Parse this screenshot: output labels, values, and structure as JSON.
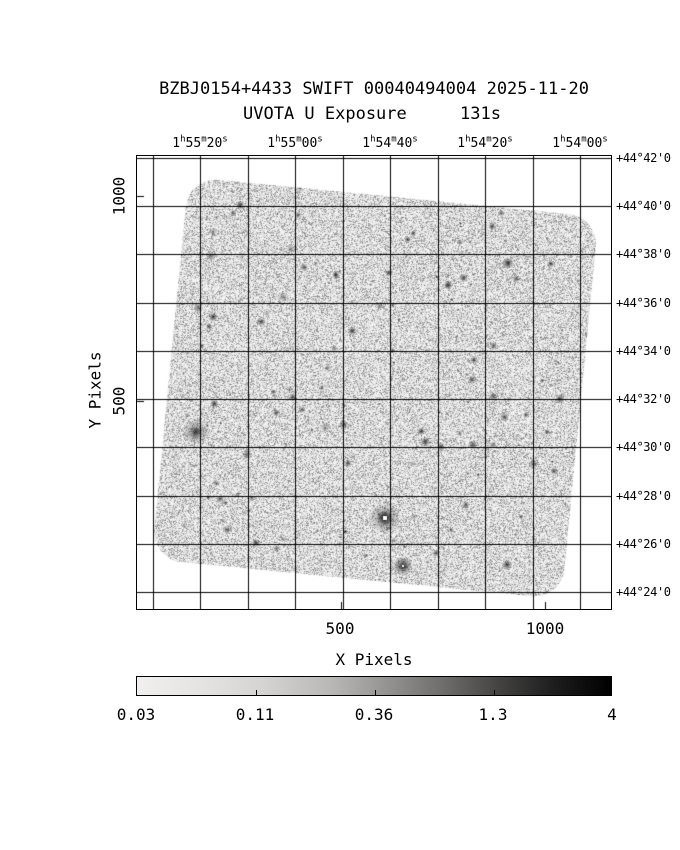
{
  "chart_data": {
    "type": "heatmap",
    "title": "BZBJ0154+4433 SWIFT 00040494004 2025-11-20",
    "subtitle": "UVOTA U Exposure",
    "exposure_label": "131s",
    "xlabel": "X Pixels",
    "ylabel": "Y Pixels",
    "grid": true,
    "x_axis": {
      "label": "X Pixels",
      "ticks": [
        "500",
        "1000"
      ]
    },
    "y_axis": {
      "label": "Y Pixels",
      "ticks": [
        "1000",
        "500"
      ]
    },
    "ra_axis": {
      "ticks": [
        "1h55m20s",
        "1h55m00s",
        "1h54m40s",
        "1h54m20s",
        "1h54m00s"
      ]
    },
    "dec_axis": {
      "ticks": [
        "+44°42'0",
        "+44°40'0",
        "+44°38'0",
        "+44°36'0",
        "+44°34'0",
        "+44°32'0",
        "+44°30'0",
        "+44°28'0",
        "+44°26'0",
        "+44°24'0"
      ]
    },
    "colorbar": {
      "scale": "log",
      "tick_labels": [
        "0.03",
        "0.11",
        "0.36",
        "1.3",
        "4"
      ]
    }
  }
}
